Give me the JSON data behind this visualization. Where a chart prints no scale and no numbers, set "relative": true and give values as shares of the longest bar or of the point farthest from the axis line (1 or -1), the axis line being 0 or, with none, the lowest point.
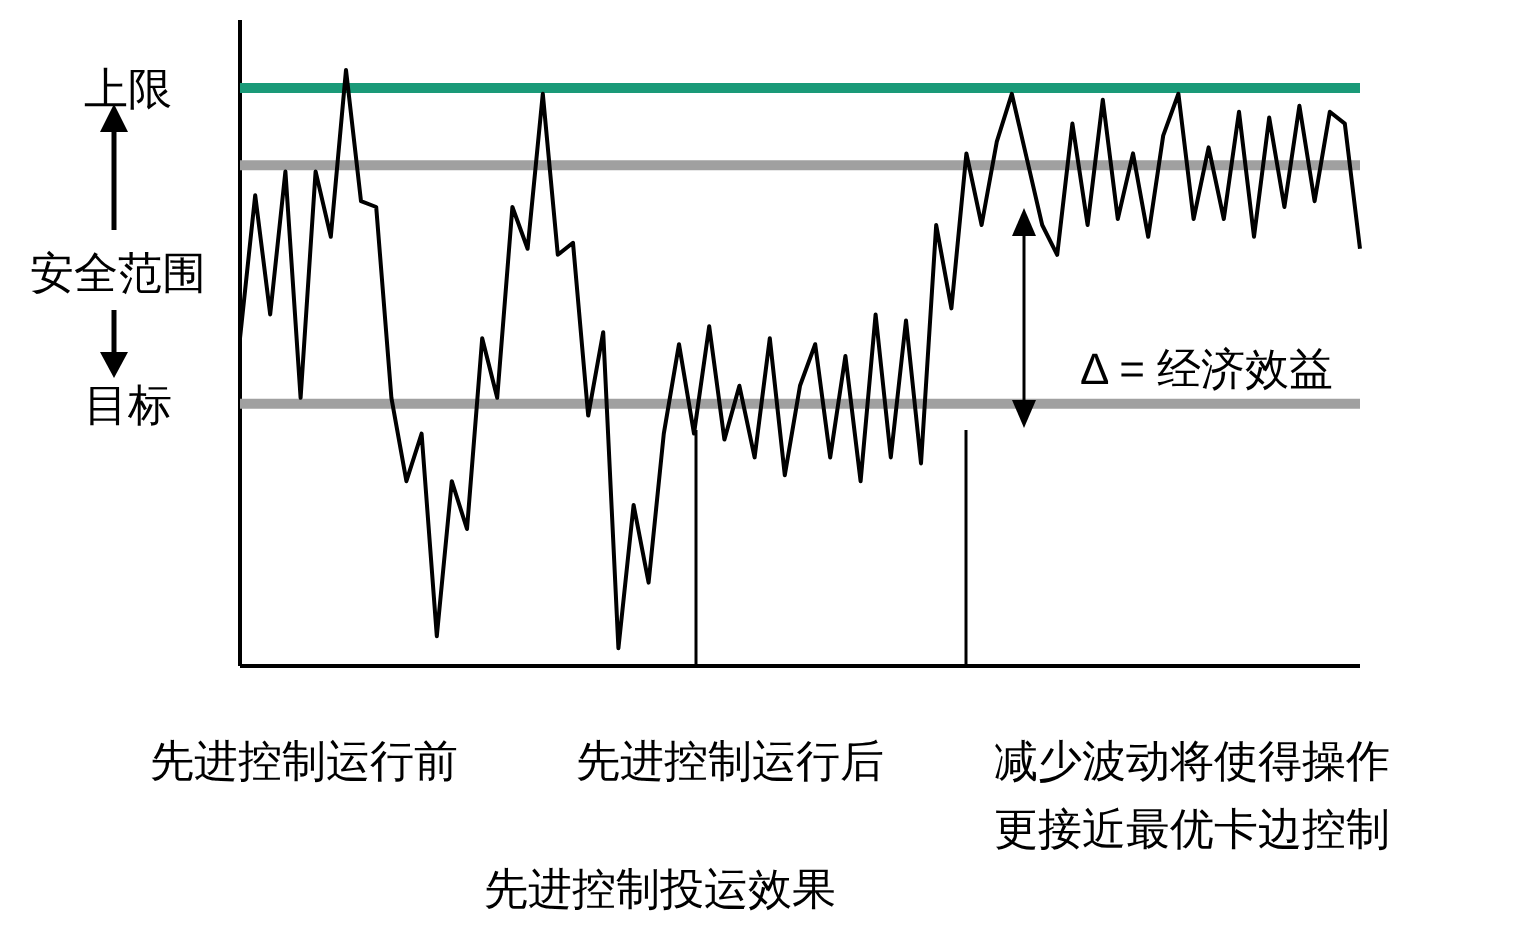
{
  "chart_data": {
    "type": "line",
    "relative": true,
    "marker": "none",
    "title": "先进控制投运效果",
    "categories": [
      null,
      null,
      null,
      null,
      null,
      null,
      null,
      null,
      null,
      null,
      null,
      null,
      null,
      null,
      null,
      null,
      null,
      null,
      null,
      null,
      null,
      null,
      null,
      null,
      null,
      null,
      null,
      null,
      null,
      null,
      null,
      null,
      null,
      null,
      null,
      null,
      null,
      null,
      null,
      null,
      null,
      null,
      null,
      null,
      null,
      null,
      null,
      null,
      null,
      null,
      null,
      null,
      null,
      null,
      null,
      null,
      null,
      null,
      null,
      null,
      null,
      null,
      null,
      null,
      null,
      null,
      null,
      null,
      null,
      null,
      null,
      null,
      null,
      null,
      null
    ],
    "series": [
      {
        "color": "#000000",
        "values": [
          0.55,
          0.79,
          0.59,
          0.83,
          0.45,
          0.83,
          0.72,
          1,
          0.78,
          0.77,
          0.45,
          0.31,
          0.39,
          0.05,
          0.31,
          0.23,
          0.55,
          0.45,
          0.77,
          0.7,
          0.96,
          0.69,
          0.71,
          0.42,
          0.56,
          0.03,
          0.27,
          0.14,
          0.39,
          0.54,
          0.39,
          0.57,
          0.38,
          0.47,
          0.35,
          0.55,
          0.32,
          0.47,
          0.54,
          0.35,
          0.52,
          0.31,
          0.59,
          0.35,
          0.58,
          0.34,
          0.74,
          0.6,
          0.86,
          0.74,
          0.88,
          0.96,
          0.85,
          0.74,
          0.69,
          0.91,
          0.74,
          0.95,
          0.75,
          0.86,
          0.72,
          0.89,
          0.96,
          0.75,
          0.87,
          0.75,
          0.93,
          0.72,
          0.92,
          0.77,
          0.94,
          0.78,
          0.93,
          0.91,
          0.7
        ]
      }
    ],
    "ref_lines": [
      {
        "axis": "y",
        "value": 0.97,
        "label": "上限",
        "color": "#1a9a78"
      },
      {
        "axis": "y",
        "value": 0.44,
        "label": "目标",
        "color": "#a0a0a0"
      },
      {
        "axis": "y",
        "value": 0.84,
        "color": "#a0a0a0"
      }
    ],
    "annotations": [
      "安全范围",
      "Δ = 经济效益",
      "先进控制运行前",
      "先进控制运行后",
      "减少波动将使得操作更接近最优卡边控制"
    ]
  }
}
